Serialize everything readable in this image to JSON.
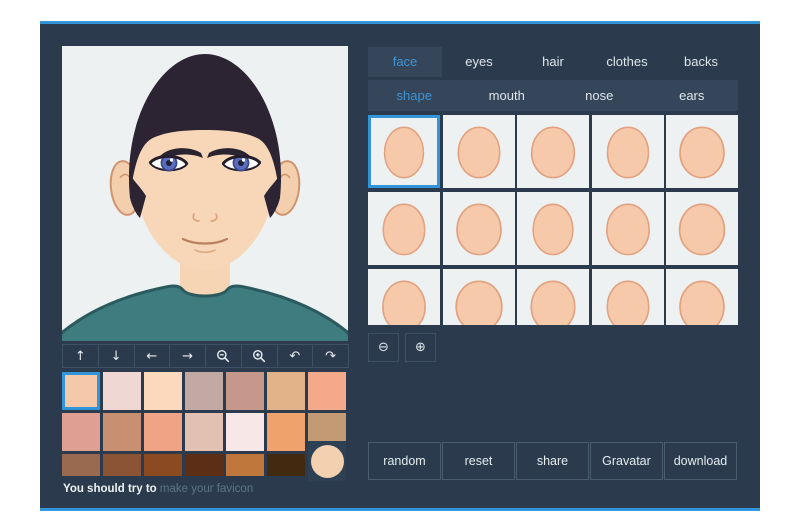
{
  "window": {
    "accent_color": "#3295da",
    "bg_color": "#2b3b4d",
    "panel_color": "#35465a",
    "active_text_color": "#3e93d6"
  },
  "tabs": {
    "items": [
      {
        "label": "face",
        "active": true
      },
      {
        "label": "eyes",
        "active": false
      },
      {
        "label": "hair",
        "active": false
      },
      {
        "label": "clothes",
        "active": false
      },
      {
        "label": "backs",
        "active": false
      }
    ]
  },
  "subtabs": {
    "items": [
      {
        "label": "shape",
        "active": true
      },
      {
        "label": "mouth",
        "active": false
      },
      {
        "label": "nose",
        "active": false
      },
      {
        "label": "ears",
        "active": false
      }
    ]
  },
  "shape_grid": {
    "tile_count": 15,
    "selected_index": 0,
    "face_fill": "#f5c9aa",
    "face_stroke": "#e2a17f",
    "scales": [
      0.94,
      1.0,
      1.03,
      0.99,
      1.06,
      1.0,
      1.06,
      0.96,
      1.02,
      1.08,
      1.02,
      1.1,
      1.05,
      1.0,
      1.06
    ]
  },
  "pager": {
    "prev_icon": "⊖",
    "next_icon": "⊕"
  },
  "actions": {
    "items": [
      "random",
      "reset",
      "share",
      "Gravatar",
      "download"
    ]
  },
  "toolbar": {
    "items": [
      {
        "name": "move-up",
        "glyph": "↑"
      },
      {
        "name": "move-down",
        "glyph": "↓"
      },
      {
        "name": "move-left",
        "glyph": "←"
      },
      {
        "name": "move-right",
        "glyph": "→"
      },
      {
        "name": "zoom-out",
        "svg": "zoom-out"
      },
      {
        "name": "zoom-in",
        "svg": "zoom-in"
      },
      {
        "name": "undo",
        "glyph": "↶"
      },
      {
        "name": "redo",
        "glyph": "↷"
      }
    ]
  },
  "palette": {
    "selected": {
      "row": 0,
      "col": 0
    },
    "rows": [
      [
        "#f4c8a8",
        "#efd8d3",
        "#fcd8bd",
        "#c2a9a4",
        "#c5988b",
        "#e2b289",
        "#f4a98b"
      ],
      [
        "#df9f92",
        "#c88f70",
        "#f1a485",
        "#e2c1b2",
        "#f7e8e7",
        "#efa26b",
        "#c49a74"
      ],
      [
        "#9a6a50",
        "#8a5435",
        "#8b4a20",
        "#5c2e15",
        "#c0773c",
        "#43290f",
        "#3a240d"
      ]
    ],
    "current_color": "#f3d1b0"
  },
  "footer": {
    "lead_text": "You should try to",
    "link_text": "make your favicon"
  }
}
